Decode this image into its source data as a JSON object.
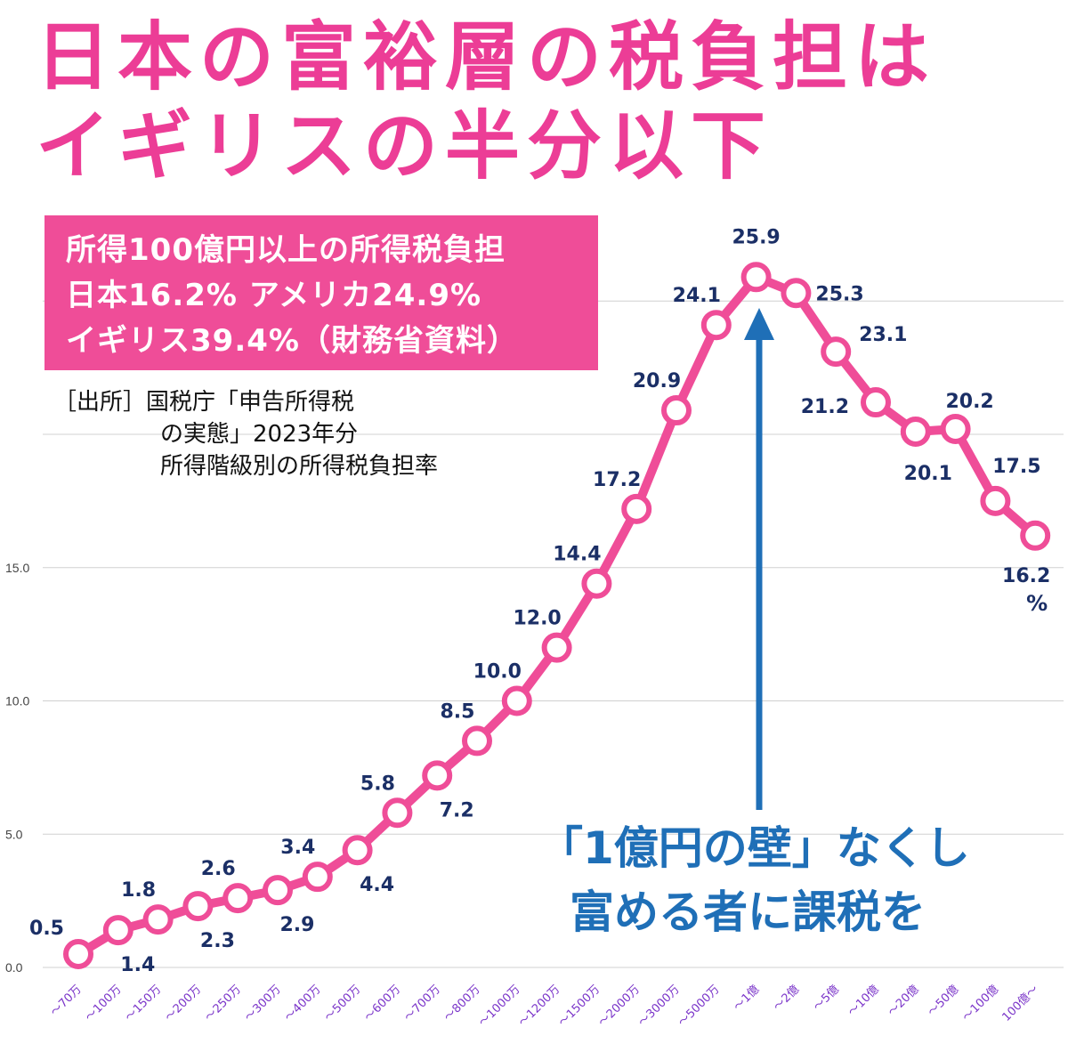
{
  "headline": {
    "line1": "日本の富裕層の税負担は",
    "line2": "イギリスの半分以下"
  },
  "info_box": {
    "line1": "所得100億円以上の所得税負担",
    "line2": "日本16.2% アメリカ24.9%",
    "line3": "イギリス39.4%（財務省資料）"
  },
  "source_note": {
    "line1": "［出所］国税庁「申告所得税",
    "line2": "の実態」2023年分",
    "line3": "所得階級別の所得税負担率"
  },
  "slogan": {
    "line1": "「1億円の壁」なくし",
    "line2": "富める者に課税を"
  },
  "colors": {
    "line": "#ef4d98",
    "value_label": "#1b2f66",
    "tick_label": "#7b35c9",
    "arrow": "#1f6fb7",
    "grid": "#d0d0d0"
  },
  "chart_data": {
    "type": "line",
    "title": "",
    "xlabel": "",
    "ylabel": "",
    "ylim": [
      0,
      25.9
    ],
    "yticks": [
      "0.0",
      "5.0",
      "10.0",
      "15.0"
    ],
    "grid": true,
    "unit_label": "%",
    "categories": [
      "～70万",
      "～100万",
      "～150万",
      "～200万",
      "～250万",
      "～300万",
      "～400万",
      "～500万",
      "～600万",
      "～700万",
      "～800万",
      "～1000万",
      "～1200万",
      "～1500万",
      "～2000万",
      "～3000万",
      "～5000万",
      "～1億",
      "～2億",
      "～5億",
      "～10億",
      "～20億",
      "～50億",
      "～100億",
      "100億～"
    ],
    "series": [
      {
        "values": [
          0.5,
          1.4,
          1.8,
          2.3,
          2.6,
          2.9,
          3.4,
          4.4,
          5.8,
          7.2,
          8.5,
          10.0,
          12.0,
          14.4,
          17.2,
          20.9,
          24.1,
          25.9,
          25.3,
          23.1,
          21.2,
          20.1,
          20.2,
          17.5,
          16.2
        ],
        "labels": [
          "0.5",
          "1.4",
          "1.8",
          "2.3",
          "2.6",
          "2.9",
          "3.4",
          "4.4",
          "5.8",
          "7.2",
          "8.5",
          "10.0",
          "12.0",
          "14.4",
          "17.2",
          "20.9",
          "24.1",
          "25.9",
          "25.3",
          "23.1",
          "21.2",
          "20.1",
          "20.2",
          "17.5",
          "16.2"
        ]
      }
    ],
    "annotation": "upward arrow pointing at the ～1億 peak"
  }
}
